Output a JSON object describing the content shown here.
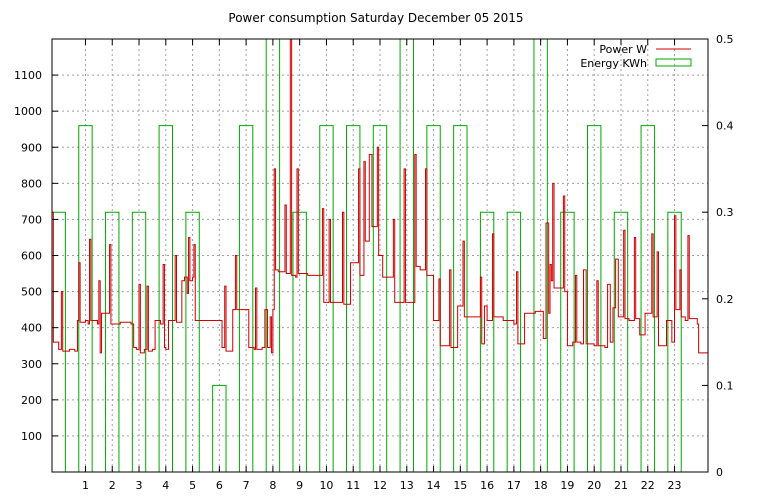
{
  "chart_data": {
    "type": "line",
    "title": "Power consumption Saturday December 05 2015",
    "xlabel": "",
    "ylabel": "",
    "xlim": [
      -0.25,
      24.25
    ],
    "ylim": [
      0,
      1200
    ],
    "y2lim": [
      0,
      0.5
    ],
    "grid": true,
    "legend_position": "top-right",
    "x_ticks": [
      1,
      2,
      3,
      4,
      5,
      6,
      7,
      8,
      9,
      10,
      11,
      12,
      13,
      14,
      15,
      16,
      17,
      18,
      19,
      20,
      21,
      22,
      23
    ],
    "y_ticks": [
      100,
      200,
      300,
      400,
      500,
      600,
      700,
      800,
      900,
      1000,
      1100
    ],
    "y2_ticks": [
      "0",
      "0.1",
      "0.2",
      "0.3",
      "0.4",
      "0.5"
    ],
    "y2_tick_values": [
      0,
      0.1,
      0.2,
      0.3,
      0.4,
      0.5
    ],
    "series": [
      {
        "name": "Power W",
        "axis": "y1",
        "color": "#cc0000",
        "style": "steps",
        "points": [
          [
            -0.25,
            720
          ],
          [
            -0.2,
            360
          ],
          [
            0.0,
            340
          ],
          [
            0.1,
            500
          ],
          [
            0.15,
            335
          ],
          [
            0.4,
            340
          ],
          [
            0.6,
            335
          ],
          [
            0.7,
            420
          ],
          [
            0.75,
            580
          ],
          [
            0.8,
            415
          ],
          [
            1.0,
            420
          ],
          [
            1.1,
            410
          ],
          [
            1.15,
            645
          ],
          [
            1.2,
            420
          ],
          [
            1.45,
            410
          ],
          [
            1.5,
            530
          ],
          [
            1.55,
            330
          ],
          [
            1.6,
            440
          ],
          [
            1.9,
            630
          ],
          [
            1.95,
            410
          ],
          [
            2.3,
            415
          ],
          [
            2.7,
            410
          ],
          [
            2.8,
            345
          ],
          [
            2.9,
            340
          ],
          [
            3.0,
            520
          ],
          [
            3.05,
            330
          ],
          [
            3.2,
            340
          ],
          [
            3.3,
            515
          ],
          [
            3.35,
            335
          ],
          [
            3.5,
            340
          ],
          [
            3.6,
            420
          ],
          [
            3.8,
            410
          ],
          [
            3.9,
            575
          ],
          [
            3.95,
            345
          ],
          [
            4.0,
            340
          ],
          [
            4.1,
            420
          ],
          [
            4.3,
            420
          ],
          [
            4.35,
            600
          ],
          [
            4.4,
            415
          ],
          [
            4.6,
            530
          ],
          [
            4.7,
            540
          ],
          [
            4.8,
            495
          ],
          [
            4.85,
            650
          ],
          [
            4.9,
            530
          ],
          [
            5.0,
            540
          ],
          [
            5.05,
            630
          ],
          [
            5.1,
            420
          ],
          [
            5.5,
            420
          ],
          [
            6.0,
            420
          ],
          [
            6.1,
            345
          ],
          [
            6.2,
            515
          ],
          [
            6.25,
            335
          ],
          [
            6.5,
            450
          ],
          [
            6.6,
            600
          ],
          [
            6.65,
            450
          ],
          [
            6.9,
            450
          ],
          [
            7.0,
            450
          ],
          [
            7.1,
            345
          ],
          [
            7.3,
            340
          ],
          [
            7.35,
            510
          ],
          [
            7.4,
            340
          ],
          [
            7.6,
            345
          ],
          [
            7.7,
            450
          ],
          [
            7.8,
            345
          ],
          [
            7.9,
            430
          ],
          [
            7.95,
            330
          ],
          [
            8.0,
            450
          ],
          [
            8.05,
            840
          ],
          [
            8.1,
            560
          ],
          [
            8.2,
            555
          ],
          [
            8.4,
            555
          ],
          [
            8.45,
            740
          ],
          [
            8.5,
            550
          ],
          [
            8.6,
            550
          ],
          [
            8.65,
            1200
          ],
          [
            8.7,
            545
          ],
          [
            8.85,
            540
          ],
          [
            8.9,
            840
          ],
          [
            8.95,
            550
          ],
          [
            9.3,
            545
          ],
          [
            9.5,
            545
          ],
          [
            9.85,
            730
          ],
          [
            9.9,
            470
          ],
          [
            10.1,
            700
          ],
          [
            10.15,
            470
          ],
          [
            10.5,
            470
          ],
          [
            10.6,
            720
          ],
          [
            10.65,
            465
          ],
          [
            10.9,
            580
          ],
          [
            11.0,
            580
          ],
          [
            11.2,
            840
          ],
          [
            11.25,
            545
          ],
          [
            11.4,
            860
          ],
          [
            11.45,
            640
          ],
          [
            11.6,
            880
          ],
          [
            11.7,
            680
          ],
          [
            11.9,
            900
          ],
          [
            11.95,
            600
          ],
          [
            12.1,
            540
          ],
          [
            12.5,
            700
          ],
          [
            12.55,
            470
          ],
          [
            12.9,
            840
          ],
          [
            12.95,
            470
          ],
          [
            13.3,
            880
          ],
          [
            13.35,
            570
          ],
          [
            13.5,
            560
          ],
          [
            13.7,
            840
          ],
          [
            13.75,
            545
          ],
          [
            14.0,
            420
          ],
          [
            14.2,
            535
          ],
          [
            14.25,
            350
          ],
          [
            14.5,
            350
          ],
          [
            14.6,
            560
          ],
          [
            14.65,
            345
          ],
          [
            14.9,
            460
          ],
          [
            15.1,
            640
          ],
          [
            15.15,
            430
          ],
          [
            15.5,
            430
          ],
          [
            15.75,
            540
          ],
          [
            15.8,
            355
          ],
          [
            15.9,
            460
          ],
          [
            16.0,
            420
          ],
          [
            16.2,
            660
          ],
          [
            16.25,
            430
          ],
          [
            16.6,
            420
          ],
          [
            17.0,
            410
          ],
          [
            17.1,
            555
          ],
          [
            17.15,
            355
          ],
          [
            17.4,
            440
          ],
          [
            17.8,
            445
          ],
          [
            18.0,
            445
          ],
          [
            18.1,
            370
          ],
          [
            18.2,
            690
          ],
          [
            18.3,
            440
          ],
          [
            18.35,
            575
          ],
          [
            18.4,
            530
          ],
          [
            18.45,
            800
          ],
          [
            18.5,
            510
          ],
          [
            18.8,
            510
          ],
          [
            18.85,
            765
          ],
          [
            18.9,
            500
          ],
          [
            19.0,
            350
          ],
          [
            19.2,
            360
          ],
          [
            19.3,
            545
          ],
          [
            19.35,
            360
          ],
          [
            19.5,
            355
          ],
          [
            19.6,
            560
          ],
          [
            19.7,
            355
          ],
          [
            19.9,
            355
          ],
          [
            20.0,
            350
          ],
          [
            20.1,
            530
          ],
          [
            20.15,
            350
          ],
          [
            20.4,
            345
          ],
          [
            20.5,
            520
          ],
          [
            20.6,
            360
          ],
          [
            20.7,
            455
          ],
          [
            20.8,
            590
          ],
          [
            20.9,
            430
          ],
          [
            21.0,
            430
          ],
          [
            21.1,
            670
          ],
          [
            21.15,
            425
          ],
          [
            21.3,
            420
          ],
          [
            21.5,
            650
          ],
          [
            21.55,
            425
          ],
          [
            21.7,
            380
          ],
          [
            21.9,
            440
          ],
          [
            22.0,
            440
          ],
          [
            22.15,
            660
          ],
          [
            22.2,
            430
          ],
          [
            22.35,
            610
          ],
          [
            22.4,
            350
          ],
          [
            22.7,
            420
          ],
          [
            22.9,
            360
          ],
          [
            23.0,
            710
          ],
          [
            23.05,
            450
          ],
          [
            23.2,
            560
          ],
          [
            23.25,
            430
          ],
          [
            23.4,
            420
          ],
          [
            23.5,
            655
          ],
          [
            23.55,
            425
          ],
          [
            23.85,
            410
          ],
          [
            23.9,
            330
          ],
          [
            24.1,
            330
          ],
          [
            24.25,
            330
          ]
        ]
      },
      {
        "name": "Energy KWh",
        "axis": "y2",
        "color": "#00aa00",
        "style": "bars",
        "bar_width": 0.5,
        "x": [
          0,
          1,
          2,
          3,
          4,
          5,
          6,
          7,
          8,
          9,
          10,
          11,
          12,
          13,
          14,
          15,
          16,
          17,
          18,
          19,
          20,
          21,
          22,
          23
        ],
        "values": [
          0.3,
          0.4,
          0.3,
          0.3,
          0.4,
          0.3,
          0.1,
          0.4,
          0.5,
          0.3,
          0.4,
          0.4,
          0.4,
          0.5,
          0.4,
          0.4,
          0.3,
          0.3,
          0.5,
          0.3,
          0.4,
          0.3,
          0.4,
          0.3
        ]
      }
    ]
  }
}
